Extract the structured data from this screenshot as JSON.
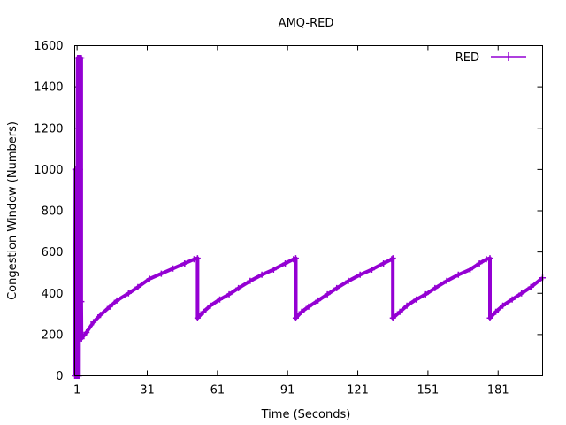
{
  "chart_data": {
    "type": "line",
    "title": "AMQ-RED",
    "xlabel": "Time (Seconds)",
    "ylabel": "Congestion Window (Numbers)",
    "xlim": [
      0,
      200
    ],
    "ylim": [
      0,
      1600
    ],
    "x_ticks": [
      1,
      31,
      61,
      91,
      121,
      151,
      181
    ],
    "y_ticks": [
      0,
      200,
      400,
      600,
      800,
      1000,
      1200,
      1400,
      1600
    ],
    "legend_position": "top-right",
    "series": [
      {
        "name": "RED",
        "color": "#9400D3",
        "points": [
          [
            0,
            0
          ],
          [
            0.3,
            1000
          ],
          [
            0.5,
            0
          ],
          [
            0.8,
            1000
          ],
          [
            1.0,
            0
          ],
          [
            1.2,
            1540
          ],
          [
            1.4,
            0
          ],
          [
            1.6,
            1540
          ],
          [
            1.8,
            0
          ],
          [
            2.0,
            1540
          ],
          [
            2.2,
            1000
          ],
          [
            2.5,
            1540
          ],
          [
            2.8,
            1540
          ],
          [
            2.8,
            360
          ],
          [
            2.9,
            180
          ],
          [
            5,
            210
          ],
          [
            8,
            260
          ],
          [
            11,
            295
          ],
          [
            15,
            335
          ],
          [
            18,
            365
          ],
          [
            23,
            400
          ],
          [
            27,
            430
          ],
          [
            32,
            470
          ],
          [
            37,
            495
          ],
          [
            42,
            520
          ],
          [
            47,
            545
          ],
          [
            51,
            565
          ],
          [
            52.5,
            570
          ],
          [
            52.5,
            280
          ],
          [
            55,
            310
          ],
          [
            58,
            340
          ],
          [
            62,
            370
          ],
          [
            66,
            395
          ],
          [
            70,
            425
          ],
          [
            75,
            460
          ],
          [
            80,
            490
          ],
          [
            85,
            515
          ],
          [
            90,
            545
          ],
          [
            93.5,
            565
          ],
          [
            94.5,
            570
          ],
          [
            94.5,
            280
          ],
          [
            97,
            310
          ],
          [
            100,
            335
          ],
          [
            104,
            365
          ],
          [
            108,
            395
          ],
          [
            112,
            425
          ],
          [
            117,
            460
          ],
          [
            122,
            490
          ],
          [
            127,
            515
          ],
          [
            132,
            545
          ],
          [
            135.5,
            565
          ],
          [
            136,
            570
          ],
          [
            136,
            280
          ],
          [
            139,
            310
          ],
          [
            142,
            340
          ],
          [
            146,
            370
          ],
          [
            150,
            395
          ],
          [
            154,
            425
          ],
          [
            159,
            460
          ],
          [
            164,
            490
          ],
          [
            169,
            515
          ],
          [
            173,
            545
          ],
          [
            176,
            565
          ],
          [
            177.5,
            570
          ],
          [
            177.5,
            280
          ],
          [
            180,
            310
          ],
          [
            183,
            340
          ],
          [
            187,
            370
          ],
          [
            191,
            400
          ],
          [
            195,
            430
          ],
          [
            200,
            475
          ]
        ]
      }
    ]
  }
}
